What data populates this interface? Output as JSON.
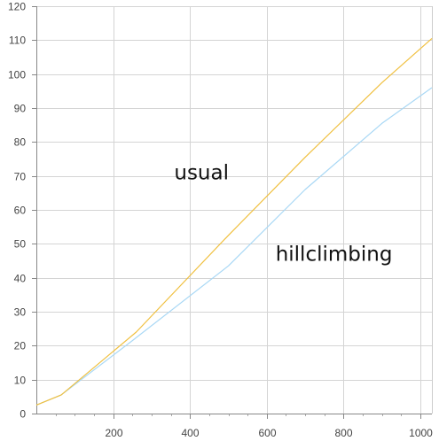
{
  "chart_data": {
    "type": "line",
    "title": "",
    "xlabel": "",
    "ylabel": "",
    "xlim": [
      0,
      1030
    ],
    "ylim": [
      0,
      120
    ],
    "x_ticks": [
      200,
      400,
      600,
      800,
      1000
    ],
    "y_ticks": [
      0,
      10,
      20,
      30,
      40,
      50,
      60,
      70,
      80,
      90,
      100,
      110,
      120
    ],
    "grid": true,
    "legend": "none",
    "series": [
      {
        "name": "usual",
        "color": "#f0c040",
        "points": [
          [
            0,
            2.5
          ],
          [
            65,
            5.5
          ],
          [
            260,
            24
          ],
          [
            500,
            52.5
          ],
          [
            700,
            75.5
          ],
          [
            900,
            97.5
          ],
          [
            1030,
            110.5
          ]
        ]
      },
      {
        "name": "hillclimbing",
        "color": "#a9d8f5",
        "points": [
          [
            0,
            2.5
          ],
          [
            65,
            5.5
          ],
          [
            250,
            21.5
          ],
          [
            500,
            43.5
          ],
          [
            700,
            66
          ],
          [
            900,
            85.5
          ],
          [
            1030,
            96
          ]
        ]
      }
    ],
    "annotations": [
      {
        "text": "usual",
        "x": 430,
        "y": 69
      },
      {
        "text": "hillclimbing",
        "x": 775,
        "y": 45
      }
    ]
  }
}
